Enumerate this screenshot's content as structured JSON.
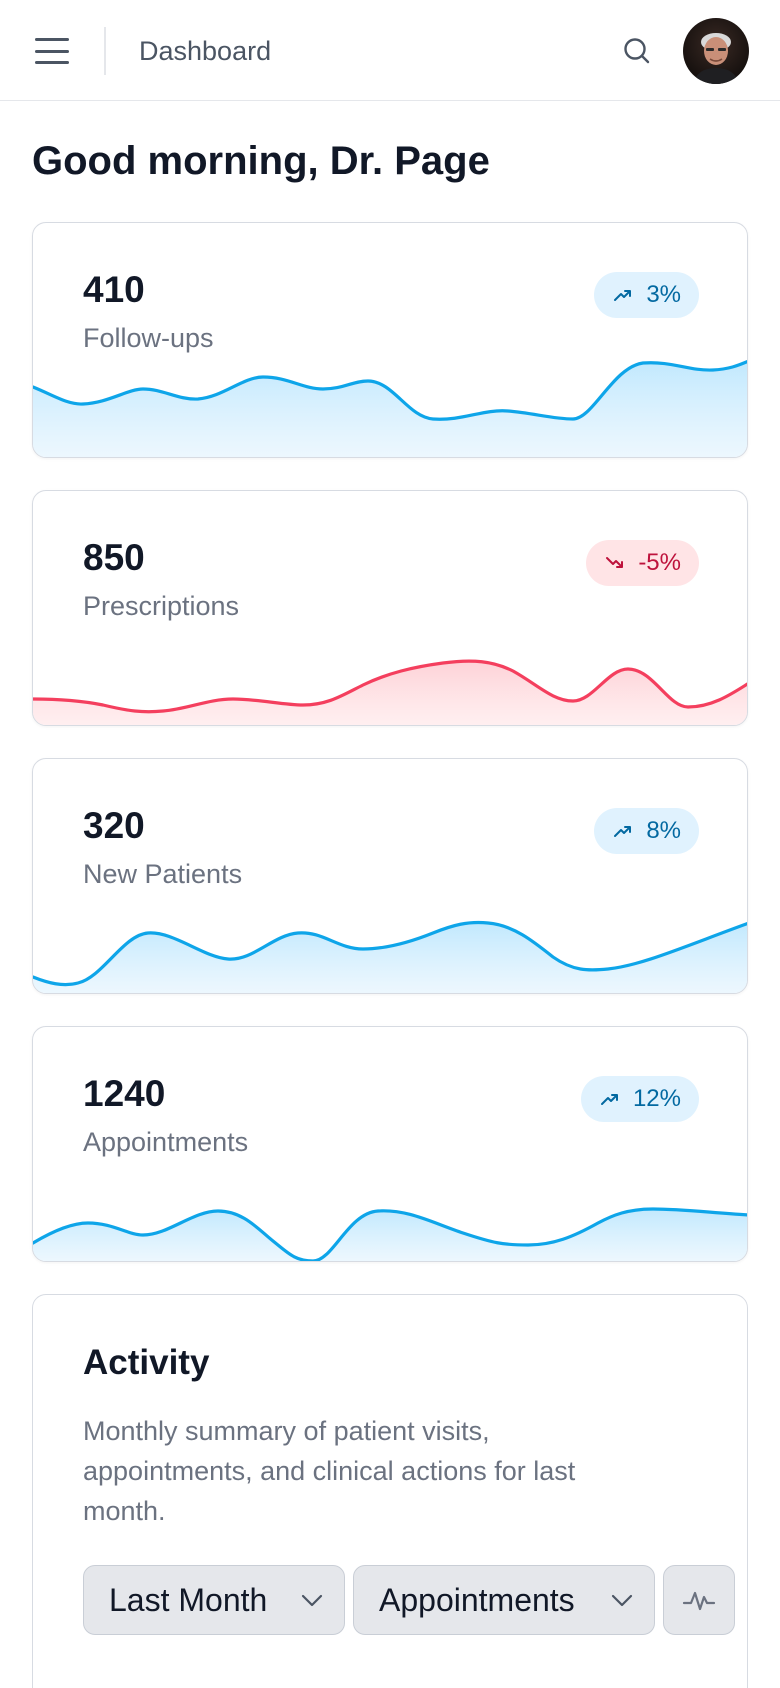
{
  "header": {
    "title": "Dashboard",
    "menu_icon": "hamburger-icon",
    "search_icon": "search-icon",
    "avatar": "user-avatar"
  },
  "greeting": "Good morning, Dr. Page",
  "stats": [
    {
      "value": "410",
      "label": "Follow-ups",
      "change": "3%",
      "trend": "up",
      "color": "#0ea5e9"
    },
    {
      "value": "850",
      "label": "Prescriptions",
      "change": "-5%",
      "trend": "down",
      "color": "#f43f5e"
    },
    {
      "value": "320",
      "label": "New Patients",
      "change": "8%",
      "trend": "up",
      "color": "#0ea5e9"
    },
    {
      "value": "1240",
      "label": "Appointments",
      "change": "12%",
      "trend": "up",
      "color": "#0ea5e9"
    }
  ],
  "activity": {
    "title": "Activity",
    "description": "Monthly summary of patient visits, appointments, and clinical actions for last month.",
    "period_select": "Last Month",
    "metric_select": "Appointments",
    "chart_toggle_icon": "activity-chart-icon"
  },
  "colors": {
    "accent_up": "#0ea5e9",
    "accent_down": "#f43f5e",
    "badge_up_bg": "#e0f2fe",
    "badge_down_bg": "#ffe4e6"
  }
}
